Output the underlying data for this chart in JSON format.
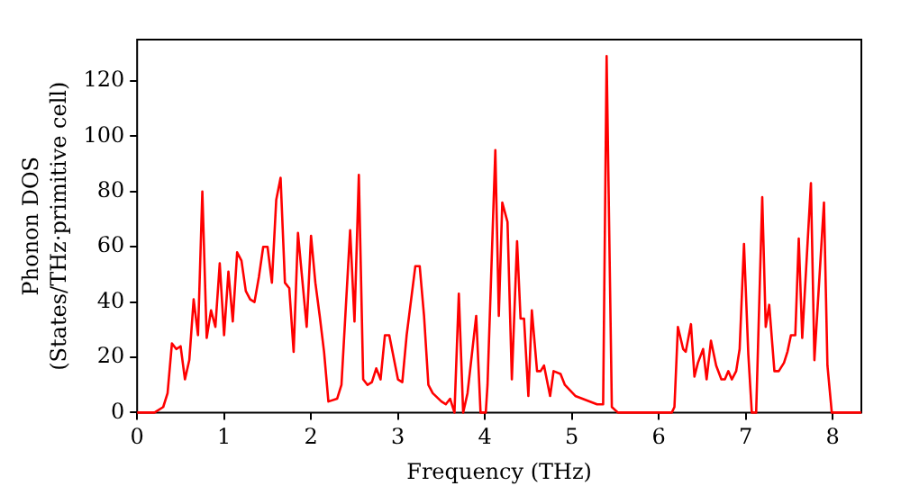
{
  "chart_data": {
    "type": "line",
    "xlabel": "Frequency (THz)",
    "ylabel": "Phonon DOS\n(States/THz·primitive cell)",
    "xlim": [
      0,
      8.33
    ],
    "ylim": [
      0,
      135
    ],
    "xticks": [
      0,
      1,
      2,
      3,
      4,
      5,
      6,
      7,
      8
    ],
    "yticks": [
      0,
      20,
      40,
      60,
      80,
      100,
      120
    ],
    "grid": false,
    "legend": false,
    "marker": "none",
    "line_style": "solid",
    "series": [
      {
        "color": "#ff0000",
        "x": [
          0,
          0.2,
          0.3,
          0.35,
          0.4,
          0.45,
          0.5,
          0.55,
          0.6,
          0.65,
          0.7,
          0.75,
          0.8,
          0.85,
          0.9,
          0.95,
          1.0,
          1.05,
          1.1,
          1.15,
          1.2,
          1.25,
          1.3,
          1.35,
          1.4,
          1.45,
          1.5,
          1.55,
          1.6,
          1.65,
          1.7,
          1.75,
          1.8,
          1.85,
          1.9,
          1.95,
          2.0,
          2.05,
          2.1,
          2.15,
          2.2,
          2.3,
          2.35,
          2.45,
          2.5,
          2.55,
          2.6,
          2.65,
          2.7,
          2.75,
          2.8,
          2.85,
          2.9,
          3.0,
          3.05,
          3.1,
          3.2,
          3.25,
          3.3,
          3.35,
          3.4,
          3.5,
          3.55,
          3.6,
          3.65,
          3.7,
          3.75,
          3.8,
          3.9,
          3.95,
          4.01,
          4.03,
          4.12,
          4.16,
          4.2,
          4.26,
          4.31,
          4.37,
          4.41,
          4.45,
          4.5,
          4.54,
          4.6,
          4.64,
          4.68,
          4.75,
          4.79,
          4.87,
          4.92,
          5.04,
          5.29,
          5.36,
          5.4,
          5.46,
          5.53,
          6.15,
          6.18,
          6.22,
          6.28,
          6.31,
          6.37,
          6.41,
          6.45,
          6.51,
          6.55,
          6.6,
          6.66,
          6.72,
          6.76,
          6.8,
          6.84,
          6.89,
          6.93,
          6.98,
          7.03,
          7.07,
          7.12,
          7.19,
          7.23,
          7.27,
          7.33,
          7.38,
          7.44,
          7.48,
          7.52,
          7.57,
          7.61,
          7.65,
          7.75,
          7.79,
          7.9,
          7.94,
          7.99,
          8.33
        ],
        "values": [
          0,
          0,
          2,
          7,
          25,
          23,
          24,
          12,
          19,
          41,
          28,
          80,
          27,
          37,
          31,
          54,
          28,
          51,
          33,
          58,
          55,
          44,
          41,
          40,
          49,
          60,
          60,
          47,
          77,
          85,
          47,
          45,
          22,
          65,
          48,
          31,
          64,
          47,
          35,
          22,
          4,
          5,
          10,
          66,
          33,
          86,
          12,
          10,
          11,
          16,
          12,
          28,
          28,
          12,
          11,
          28,
          53,
          53,
          35,
          10,
          7,
          4,
          3,
          5,
          0,
          43,
          0,
          7,
          35,
          0,
          0,
          10,
          95,
          35,
          76,
          69,
          12,
          62,
          34,
          34,
          6,
          37,
          15,
          15,
          17,
          6,
          15,
          14,
          10,
          6,
          3,
          3,
          129,
          2,
          0,
          0,
          2,
          31,
          23,
          22,
          32,
          13,
          18,
          23,
          12,
          26,
          17,
          12,
          12,
          15,
          12,
          15,
          23,
          61,
          21,
          0,
          0,
          78,
          31,
          39,
          15,
          15,
          18,
          22,
          28,
          28,
          63,
          27,
          83,
          19,
          76,
          17,
          0,
          0
        ]
      }
    ]
  }
}
